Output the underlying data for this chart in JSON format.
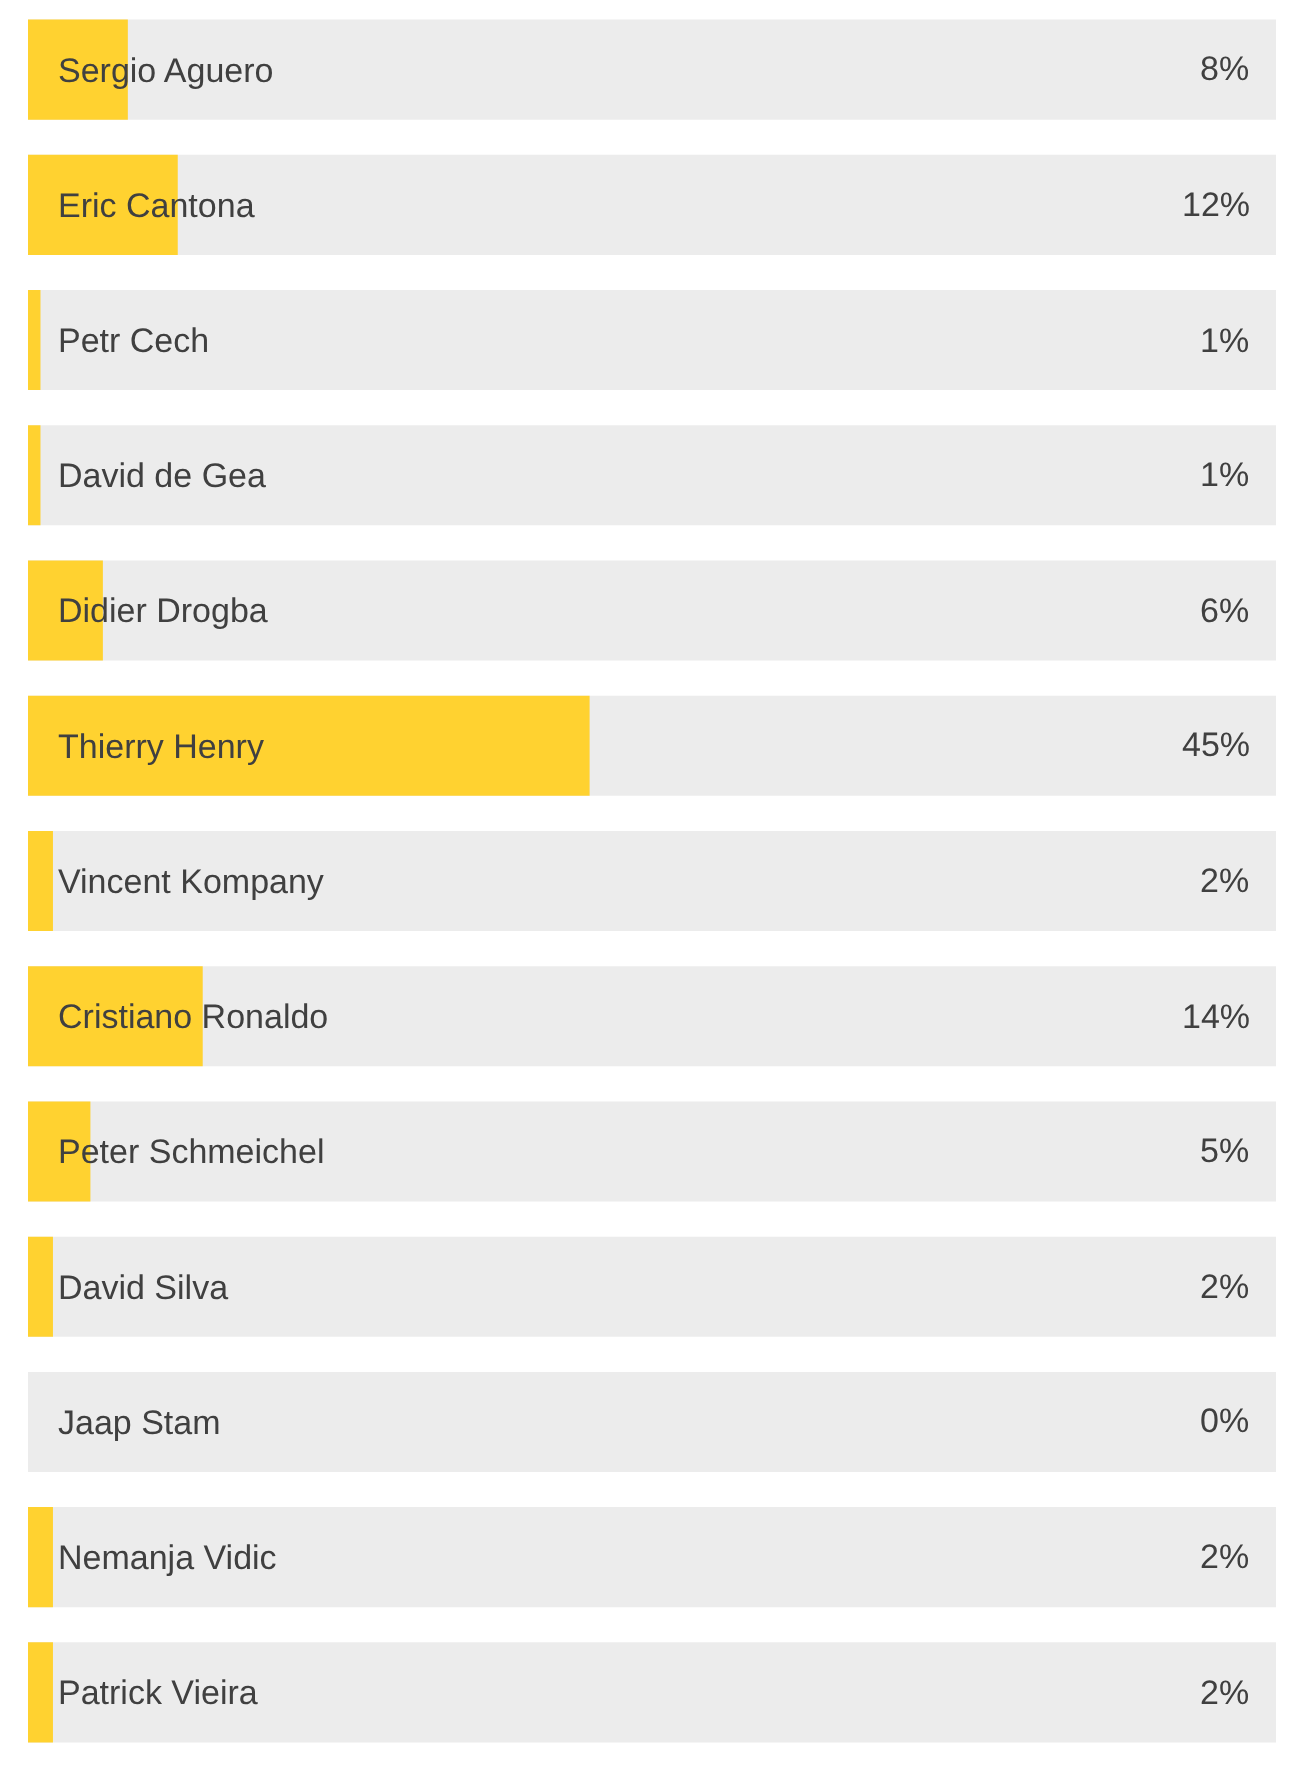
{
  "chart_data": {
    "type": "bar",
    "orientation": "horizontal",
    "categories": [
      "Sergio Aguero",
      "Eric Cantona",
      "Petr Cech",
      "David de Gea",
      "Didier Drogba",
      "Thierry Henry",
      "Vincent Kompany",
      "Cristiano Ronaldo",
      "Peter Schmeichel",
      "David Silva",
      "Jaap Stam",
      "Nemanja Vidic",
      "Patrick Vieira"
    ],
    "series": [
      {
        "color": "#ffd230",
        "values": [
          8,
          12,
          1,
          1,
          6,
          45,
          2,
          14,
          5,
          2,
          0,
          2,
          2
        ],
        "value_labels": [
          "8%",
          "12%",
          "1%",
          "1%",
          "6%",
          "45%",
          "2%",
          "14%",
          "5%",
          "2%",
          "0%",
          "2%",
          "2%"
        ]
      }
    ],
    "bands": [
      {
        "axis": "x",
        "from": 0,
        "to": 100,
        "color": "#ececec"
      }
    ],
    "xlim": [
      0,
      100
    ],
    "tick_labels": "y"
  }
}
